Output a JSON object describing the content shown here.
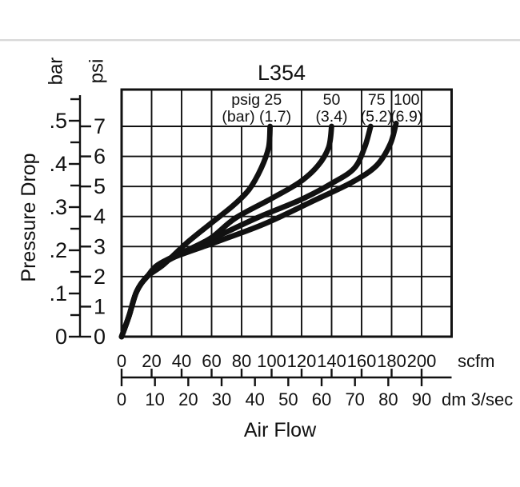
{
  "page": {
    "background": "#ffffff",
    "divider_color": "#d8d8d8",
    "ink_color": "#111111"
  },
  "chart_data": {
    "type": "line",
    "title": "L354",
    "x_axis": {
      "label": "Air Flow",
      "range_scfm": [
        0,
        220
      ],
      "scales": [
        {
          "unit": "scfm",
          "ticks": [
            0,
            20,
            40,
            60,
            80,
            100,
            120,
            140,
            160,
            180,
            200
          ]
        },
        {
          "unit": "dm 3/sec",
          "ticks": [
            0,
            10,
            20,
            30,
            40,
            50,
            60,
            70,
            80,
            90
          ]
        }
      ]
    },
    "y_axis": {
      "label": "Pressure Drop",
      "range_psi": [
        0,
        7
      ],
      "scales": [
        {
          "unit": "bar",
          "ticks": [
            0,
            0.1,
            0.2,
            0.3,
            0.4,
            0.5
          ],
          "tick_labels": [
            "0",
            ".1",
            ".2",
            ".3",
            ".4",
            ".5"
          ],
          "minor_step_bar": 0.05,
          "range_bar": [
            0,
            0.55
          ]
        },
        {
          "unit": "psi",
          "ticks": [
            0,
            1,
            2,
            3,
            4,
            5,
            6,
            7
          ]
        }
      ]
    },
    "grid": {
      "x_step_scfm": 20,
      "y_step_psi": 1,
      "visible": true
    },
    "legend_band_divider_lines_scfm": [
      20,
      40,
      60,
      120,
      160,
      180,
      200
    ],
    "series": [
      {
        "name": "25 psig (1.7 bar) inlet",
        "inlet_pressure_psig": 25,
        "inlet_pressure_bar": 1.7,
        "label_top": "psig 25",
        "label_bottom": "(bar) (1.7)",
        "label_cell_scfm": [
          60,
          120
        ],
        "points_scfm_psi": [
          [
            0,
            0
          ],
          [
            5,
            0.7
          ],
          [
            10,
            1.5
          ],
          [
            17,
            2.0
          ],
          [
            28,
            2.4
          ],
          [
            43,
            3.1
          ],
          [
            59,
            3.75
          ],
          [
            74,
            4.35
          ],
          [
            85,
            4.9
          ],
          [
            93,
            5.6
          ],
          [
            98,
            6.3
          ],
          [
            99,
            7.0
          ]
        ]
      },
      {
        "name": "50 psig (3.4 bar) inlet",
        "inlet_pressure_psig": 50,
        "inlet_pressure_bar": 3.4,
        "label_top": "50",
        "label_bottom": "(3.4)",
        "label_cell_scfm": [
          120,
          160
        ],
        "points_scfm_psi": [
          [
            0,
            0
          ],
          [
            5,
            0.7
          ],
          [
            10,
            1.5
          ],
          [
            17,
            2.0
          ],
          [
            28,
            2.45
          ],
          [
            45,
            2.9
          ],
          [
            60,
            3.3
          ],
          [
            76,
            3.95
          ],
          [
            100,
            4.6
          ],
          [
            119,
            5.15
          ],
          [
            131,
            5.7
          ],
          [
            138,
            6.3
          ],
          [
            140,
            7.0
          ]
        ]
      },
      {
        "name": "75 psig (5.2 bar) inlet",
        "inlet_pressure_psig": 75,
        "inlet_pressure_bar": 5.2,
        "label_top": "75",
        "label_bottom": "(5.2)",
        "label_cell_scfm": [
          160,
          180
        ],
        "points_scfm_psi": [
          [
            0,
            0
          ],
          [
            5,
            0.7
          ],
          [
            10,
            1.5
          ],
          [
            17,
            2.0
          ],
          [
            28,
            2.5
          ],
          [
            58,
            3.2
          ],
          [
            90,
            3.95
          ],
          [
            119,
            4.55
          ],
          [
            140,
            5.1
          ],
          [
            155,
            5.6
          ],
          [
            162,
            6.3
          ],
          [
            166,
            7.0
          ]
        ]
      },
      {
        "name": "100 psig (6.9 bar) inlet",
        "inlet_pressure_psig": 100,
        "inlet_pressure_bar": 6.9,
        "label_top": "100",
        "label_bottom": "(6.9)",
        "label_cell_scfm": [
          180,
          200
        ],
        "points_scfm_psi": [
          [
            0,
            0
          ],
          [
            5,
            0.7
          ],
          [
            10,
            1.5
          ],
          [
            17,
            2.0
          ],
          [
            28,
            2.5
          ],
          [
            63,
            3.15
          ],
          [
            95,
            3.75
          ],
          [
            127,
            4.5
          ],
          [
            154,
            5.15
          ],
          [
            170,
            5.7
          ],
          [
            179,
            6.4
          ],
          [
            183,
            7.1
          ]
        ]
      }
    ]
  }
}
